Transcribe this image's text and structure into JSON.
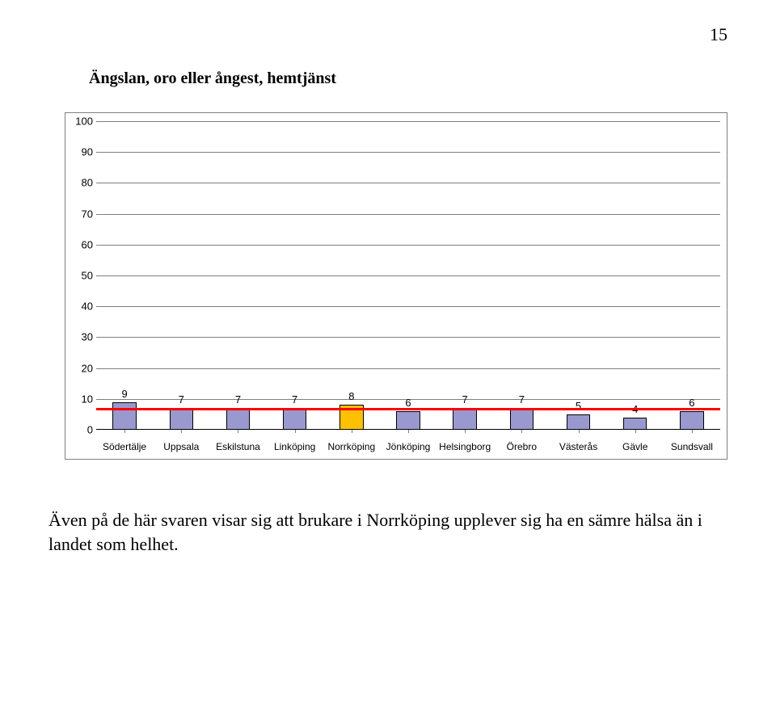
{
  "page_number": "15",
  "chart": {
    "type": "bar",
    "title": "Ängslan, oro eller ångest, hemtjänst",
    "title_fontsize": 20,
    "categories": [
      "Södertälje",
      "Uppsala",
      "Eskilstuna",
      "Linköping",
      "Norrköping",
      "Jönköping",
      "Helsingborg",
      "Örebro",
      "Västerås",
      "Gävle",
      "Sundsvall"
    ],
    "values": [
      9,
      7,
      7,
      7,
      8,
      6,
      7,
      7,
      5,
      4,
      6
    ],
    "default_bar_fill": "#9999cf",
    "highlight_index": 4,
    "highlight_bar_fill": "#ffc000",
    "bar_border_color": "#000000",
    "ylim": [
      0,
      100
    ],
    "ytick_step": 10,
    "grid_color": "#7f7f7f",
    "background_color": "#ffffff",
    "axis_label_fontsize": 13,
    "x_label_fontsize": 12,
    "bar_label_fontsize": 13,
    "bar_width_ratio": 0.42,
    "reference_line": {
      "value": 7,
      "color": "#ff0000",
      "width": 3
    }
  },
  "body_text": "Även på de här svaren visar sig att brukare i Norrköping upplever sig ha en sämre hälsa än i landet som helhet."
}
